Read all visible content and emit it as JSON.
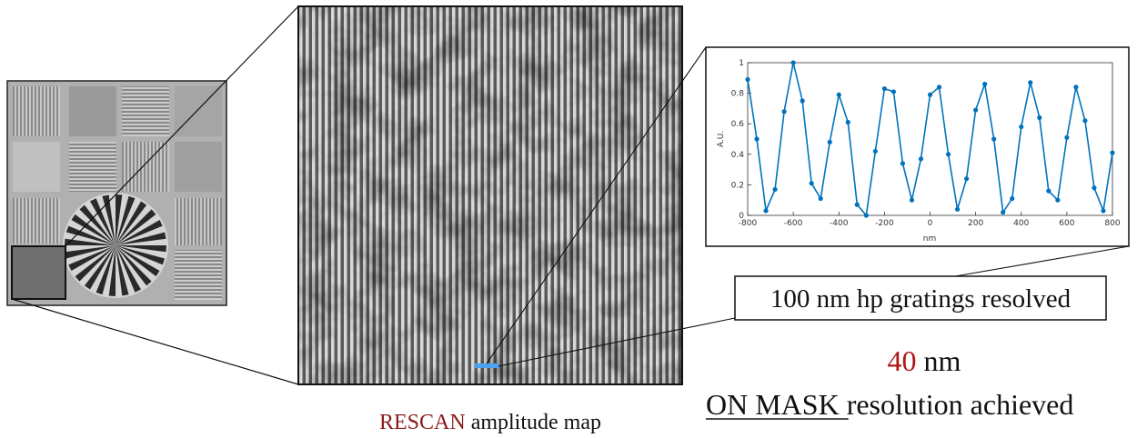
{
  "chart_data": {
    "type": "line",
    "xlabel": "nm",
    "ylabel": "A.U.",
    "x": [
      -800,
      -760,
      -720,
      -680,
      -640,
      -600,
      -560,
      -520,
      -480,
      -440,
      -400,
      -360,
      -320,
      -280,
      -240,
      -200,
      -160,
      -120,
      -80,
      -40,
      0,
      40,
      80,
      120,
      160,
      200,
      240,
      280,
      320,
      360,
      400,
      440,
      480,
      520,
      560,
      600,
      640,
      680,
      720,
      760,
      800
    ],
    "series": [
      {
        "color": "#0072bd",
        "values": [
          0.89,
          0.5,
          0.03,
          0.17,
          0.68,
          1,
          0.75,
          0.21,
          0.11,
          0.48,
          0.79,
          0.61,
          0.07,
          0,
          0.42,
          0.83,
          0.81,
          0.34,
          0.1,
          0.37,
          0.79,
          0.84,
          0.4,
          0.04,
          0.24,
          0.69,
          0.86,
          0.5,
          0.02,
          0.11,
          0.58,
          0.87,
          0.64,
          0.16,
          0.1,
          0.51,
          0.84,
          0.62,
          0.18,
          0.03,
          0.41
        ]
      }
    ],
    "xlim": [
      -800,
      800
    ],
    "ylim": [
      0,
      1
    ],
    "xticks": [
      -800,
      -600,
      -400,
      -200,
      0,
      200,
      400,
      600,
      800
    ],
    "yticks": [
      0,
      0.2,
      0.4,
      0.6,
      0.8,
      1
    ]
  },
  "annotations": {
    "gratings": "100 nm hp gratings resolved",
    "resolution_value": "40",
    "resolution_unit": "nm",
    "on_mask": "ON MASK",
    "resolution_text": "resolution achieved",
    "method": "RESCAN",
    "map_text": "amplitude map"
  }
}
